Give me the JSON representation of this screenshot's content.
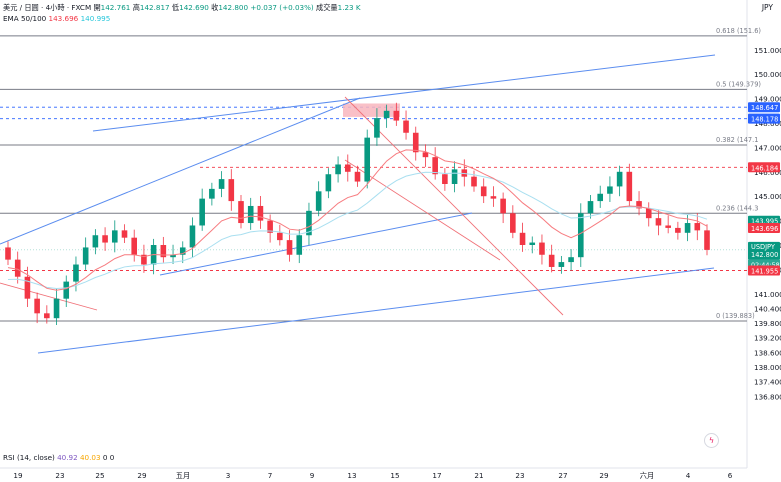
{
  "header": {
    "line1_title": "美元 / 日圓 · 4小時 · FXCM",
    "o_label": "開",
    "o_val": "142.761",
    "h_label": "高",
    "h_val": "142.817",
    "l_label": "低",
    "l_val": "142.690",
    "c_label": "收",
    "c_val": "142.800",
    "change": "+0.037 (+0.03%)",
    "vol_label": "成交量",
    "vol_val": "1.23 K",
    "ema_label": "EMA 50/100",
    "ema_fast": "143.696",
    "ema_slow": "140.995",
    "currency": "JPY"
  },
  "rsi_legend": {
    "label": "RSI (14, close)",
    "v1": "40.92",
    "v2": "40.03",
    "v3": "0",
    "v4": "0"
  },
  "clock_icon": "lightning-bolt-icon",
  "colors": {
    "up": "#089981",
    "down": "#f23645",
    "channel": "#5b8def",
    "ema_fast": "#f77c80",
    "ema_slow": "#a9dff0",
    "horizontal": "#787b86",
    "badge_blue": "#2962ff"
  },
  "chart_data": {
    "type": "candlestick",
    "symbol": "USDJPY",
    "interval": "4H",
    "ylim": [
      136.5,
      152.1
    ],
    "y_ticks": [
      "136.800",
      "137.400",
      "138.000",
      "138.600",
      "139.200",
      "139.800",
      "140.400",
      "141.000",
      "142.000",
      "143.000",
      "144.000",
      "145.000",
      "146.000",
      "147.000",
      "148.000",
      "149.000",
      "150.000",
      "151.000"
    ],
    "x_ticks": [
      "19",
      "23",
      "25",
      "29",
      "五月",
      "3",
      "7",
      "9",
      "13",
      "15",
      "17",
      "21",
      "23",
      "27",
      "29",
      "六月",
      "4",
      "6"
    ],
    "fib_levels": [
      {
        "label": "0.618 (151.6)",
        "price": 151.57
      },
      {
        "label": "0.5 (149.379)",
        "price": 149.379
      },
      {
        "label": "0.382 (147.1",
        "price": 147.1
      },
      {
        "label": "0.236 (144.3",
        "price": 144.3
      },
      {
        "label": "0 (139.883)",
        "price": 139.883
      }
    ],
    "horizontal_lines": [
      151.57,
      149.379,
      148.647,
      148.178,
      147.1,
      146.184,
      144.3,
      141.955,
      139.883
    ],
    "price_badges": [
      {
        "value": "148.647",
        "color": "#2962ff"
      },
      {
        "value": "148.178",
        "color": "#2962ff"
      },
      {
        "value": "146.184",
        "color": "#f23645"
      },
      {
        "value": "143.995",
        "color": "#089981"
      },
      {
        "value": "143.696",
        "color": "#f23645"
      },
      {
        "value": "USDJPY",
        "value2": "142.800",
        "sub": "02:44:58",
        "color": "#089981"
      },
      {
        "value": "141.955",
        "color": "#f23645"
      }
    ],
    "last_price": 142.8,
    "closes": [
      142.4,
      141.7,
      140.8,
      140.2,
      140.0,
      140.8,
      141.5,
      142.2,
      142.9,
      143.4,
      143.1,
      143.6,
      143.3,
      142.6,
      142.2,
      143.0,
      142.5,
      142.6,
      142.9,
      143.8,
      144.9,
      145.3,
      145.7,
      144.8,
      143.9,
      144.6,
      144.0,
      143.5,
      143.2,
      142.6,
      143.4,
      144.4,
      145.2,
      145.9,
      146.3,
      146.0,
      145.6,
      147.4,
      148.2,
      148.5,
      148.1,
      147.6,
      146.8,
      146.6,
      145.9,
      145.5,
      146.1,
      145.8,
      145.4,
      145.0,
      144.9,
      144.3,
      143.5,
      143.0,
      143.1,
      142.6,
      142.1,
      142.3,
      142.5,
      144.3,
      144.8,
      145.1,
      145.4,
      146.0,
      144.8,
      144.5,
      144.1,
      143.8,
      143.7,
      143.5,
      143.9,
      143.6,
      142.8
    ]
  }
}
